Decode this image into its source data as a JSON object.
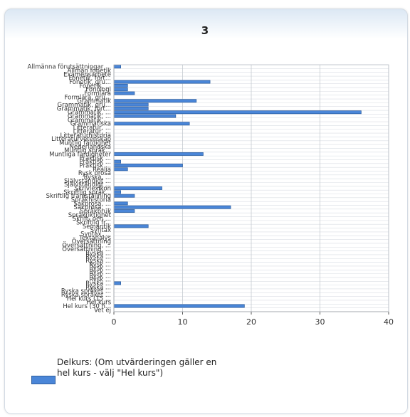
{
  "chart_data": {
    "type": "bar",
    "orientation": "horizontal",
    "title": "3",
    "xlim": [
      0,
      40
    ],
    "x_ticks": [
      0,
      10,
      20,
      30,
      40
    ],
    "grid": true,
    "legend_placement": "bottom-left",
    "bar_color": "#4a86d8",
    "series": [
      {
        "name": "Delkurs: (Om utvärderingen gäller en hel kurs - välj \"Hel kurs\")",
        "categories": [
          "Allmänna förutsättningar ...",
          "Allmän fonetik",
          "Examensarbete",
          "Fonetik, fort...",
          "Fonetik, gru...",
          "Fonetik, ...",
          "Fonologi",
          "Formlära",
          "Formlära, gru...",
          "Grammatik",
          "Grammatik, gru...",
          "Grammatik, fort...",
          "Grammatik, ...",
          "Grammatik, ...",
          "Grammatik, ...",
          "Grammatiska",
          "Litteratur, ...",
          "Litteratur, ...",
          "Litteraturhistoria",
          "Litteraturvetenskap",
          "Muntlig färdighet",
          "Nederländska",
          "Muntlig språk...",
          "Muntliga färdigheter",
          "Praktisk ...",
          "Praktisk ...",
          "Praktisk ...",
          "Realia",
          "Rysk prosa",
          "Ryska, ...",
          "Självständigt ...",
          "Självständigt ...",
          "Skrivlexikon",
          "Skriftlig språk...",
          "Skriftlig framställning",
          "Språkhistoria",
          "Sakprosa, ...",
          "Sakprosa, ...",
          "Språkbruk",
          "Språkriktighet",
          "Skrift- och ...",
          "Skriftlig fr...",
          "Semantik",
          "Syntax",
          "Syntax, ...",
          "Textanalys",
          "Översättning",
          "Översättning, ...",
          "Översättning, ...",
          "Ryska ...",
          "Ryska ...",
          "Ryska ...",
          "Rysk ...",
          "Rysk ...",
          "Rysk ...",
          "Rysk ...",
          "Rysk ...",
          "Ryska ...",
          "Ryska ...",
          "Ryska språket ...",
          "Ryska språket ...",
          "Hel kurs (15 ...",
          "Hel kurs",
          "Hel kurs (30 h...",
          "Vet ej"
        ],
        "values": [
          1,
          0,
          0,
          0,
          14,
          2,
          2,
          3,
          0,
          12,
          5,
          5,
          36,
          9,
          0,
          11,
          0,
          0,
          0,
          0,
          0,
          0,
          0,
          13,
          0,
          1,
          10,
          2,
          0,
          0,
          0,
          0,
          7,
          1,
          3,
          0,
          2,
          17,
          3,
          0,
          0,
          0,
          5,
          0,
          0,
          0,
          0,
          0,
          0,
          0,
          0,
          0,
          0,
          0,
          0,
          0,
          0,
          1,
          0,
          0,
          0,
          0,
          0,
          19,
          0
        ]
      }
    ]
  },
  "legend": {
    "text": "Delkurs: (Om utvärderingen gäller en hel kurs - välj \"Hel kurs\")"
  }
}
